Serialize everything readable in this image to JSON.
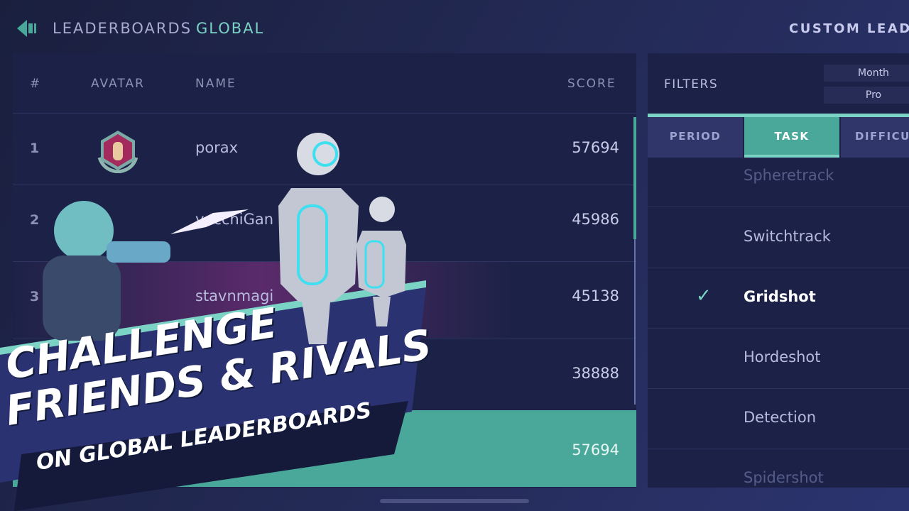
{
  "header": {
    "title": "LEADERBOARDS",
    "scope": "GLOBAL",
    "custom_label": "CUSTOM LEADE"
  },
  "table": {
    "columns": {
      "rank": "#",
      "avatar": "AVATAR",
      "name": "NAME",
      "score": "SCORE"
    },
    "rows": [
      {
        "rank": "1",
        "name": "porax",
        "score": "57694"
      },
      {
        "rank": "2",
        "name": "vecchiGan",
        "score": "45986"
      },
      {
        "rank": "3",
        "name": "stavnmagi",
        "score": "45138"
      },
      {
        "rank": "",
        "name": "",
        "score": "38888"
      }
    ],
    "player_row": {
      "score": "57694"
    }
  },
  "filters": {
    "label": "FILTERS",
    "chips": [
      "Month",
      "Pro"
    ],
    "tabs": [
      {
        "label": "PERIOD"
      },
      {
        "label": "TASK",
        "active": true
      },
      {
        "label": "DIFFICULTY"
      }
    ],
    "tasks": [
      {
        "label": "Spheretrack"
      },
      {
        "label": "Switchtrack"
      },
      {
        "label": "Gridshot",
        "selected": true
      },
      {
        "label": "Hordeshot"
      },
      {
        "label": "Detection"
      },
      {
        "label": "Spidershot"
      }
    ]
  },
  "promo": {
    "line1": "CHALLENGE",
    "line2": "FRIENDS & RIVALS",
    "line3": "ON GLOBAL LEADERBOARDS"
  },
  "colors": {
    "accent": "#4aa89a",
    "accent_light": "#7ad3c4",
    "panel": "#1c2247",
    "background": "#232a55"
  }
}
